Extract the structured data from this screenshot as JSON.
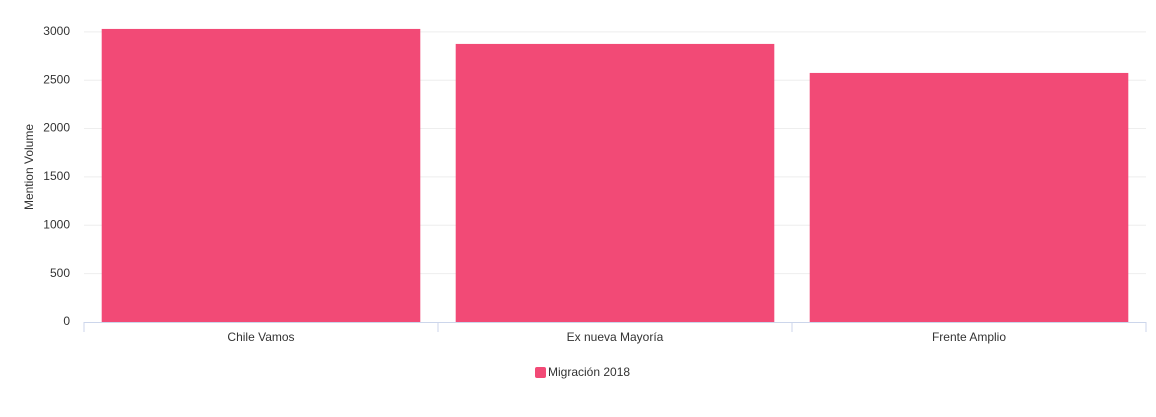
{
  "chart_data": {
    "type": "bar",
    "y_label": "Mention Volume",
    "categories": [
      "Chile Vamos",
      "Ex nueva Mayoría",
      "Frente Amplio"
    ],
    "series": [
      {
        "name": "Migración 2018",
        "color": "#f24a76",
        "values": [
          3030,
          2875,
          2575
        ]
      }
    ],
    "ylim": [
      0,
      3050
    ],
    "yticks": [
      0,
      500,
      1000,
      1500,
      2000,
      2500,
      3000
    ],
    "grid": true,
    "legend": "bottom"
  }
}
